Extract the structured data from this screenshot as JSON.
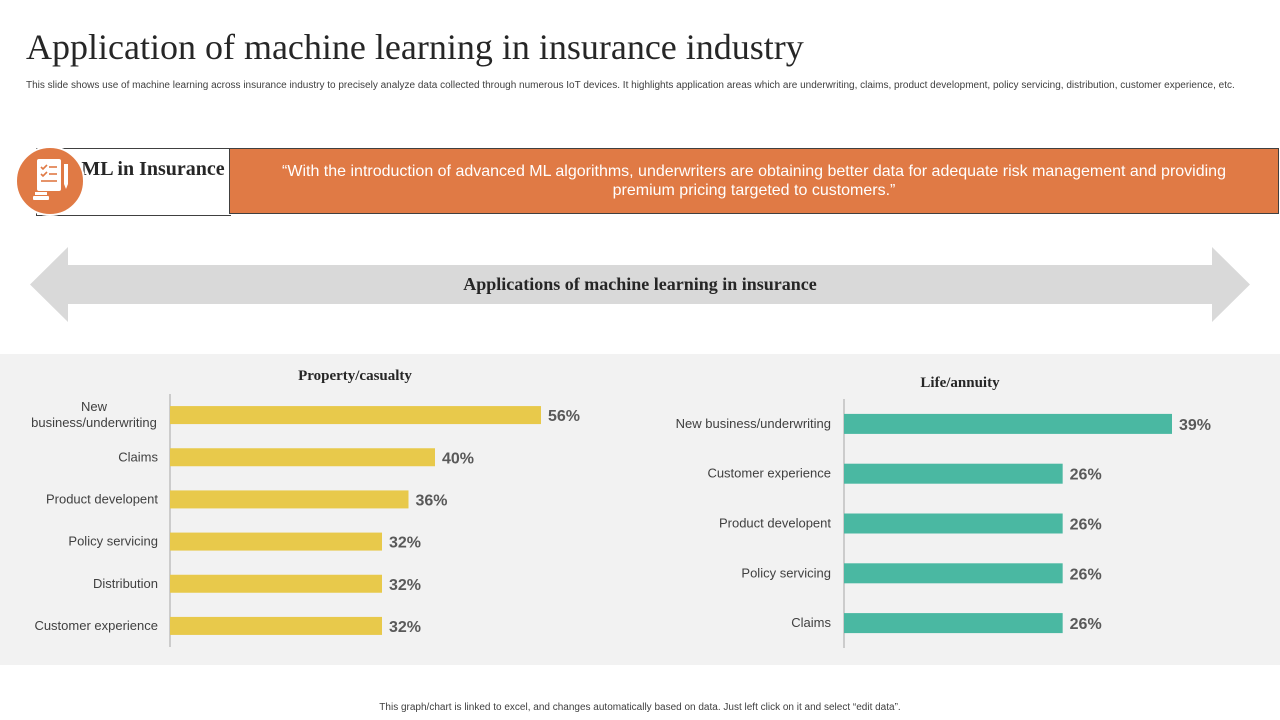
{
  "slide": {
    "title": "Application of machine learning in insurance industry",
    "subtitle": "This slide shows use of machine learning across insurance industry to precisely analyze data collected through numerous IoT devices. It highlights application areas which are underwriting, claims, product development, policy servicing, distribution, customer experience, etc.",
    "ml_label": "ML in Insurance",
    "quote": "“With the introduction of advanced ML algorithms, underwriters are obtaining better data for adequate risk management and providing premium pricing targeted to customers.”",
    "arrow_label": "Applications of machine learning in insurance",
    "footer": "This graph/chart is linked to excel, and changes automatically based on data. Just left click on it and select “edit data”.",
    "icon": "insurance-document-icon"
  },
  "colors": {
    "accent_orange": "#e07a45",
    "bar_yellow": "#e8c94b",
    "bar_teal": "#4ab8a2",
    "panel_gray": "#f2f2f2",
    "arrow_gray": "#d9d9d9"
  },
  "chart_data": [
    {
      "type": "bar",
      "orientation": "horizontal",
      "title": "Property/casualty",
      "categories": [
        "New business/underwriting",
        "Claims",
        "Product developent",
        "Policy servicing",
        "Distribution",
        "Customer experience"
      ],
      "values": [
        56,
        40,
        36,
        32,
        32,
        32
      ],
      "value_labels": [
        "56%",
        "40%",
        "36%",
        "32%",
        "32%",
        "32%"
      ],
      "unit": "%",
      "xlim": [
        0,
        56
      ],
      "grid": false,
      "color": "#e8c94b"
    },
    {
      "type": "bar",
      "orientation": "horizontal",
      "title": "Life/annuity",
      "categories": [
        "New business/underwriting",
        "Customer experience",
        "Product developent",
        "Policy servicing",
        "Claims"
      ],
      "values": [
        39,
        26,
        26,
        26,
        26
      ],
      "value_labels": [
        "39%",
        "26%",
        "26%",
        "26%",
        "26%"
      ],
      "unit": "%",
      "xlim": [
        0,
        39
      ],
      "grid": false,
      "color": "#4ab8a2"
    }
  ]
}
